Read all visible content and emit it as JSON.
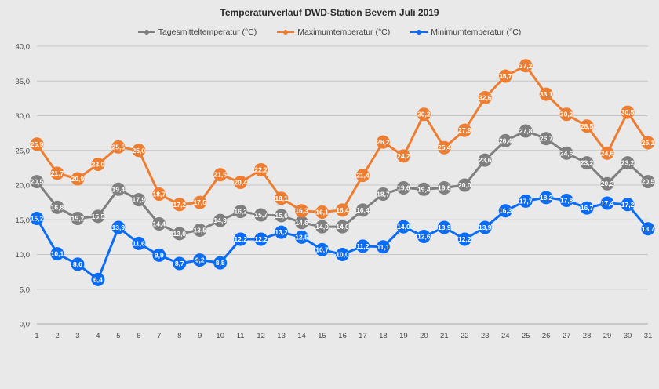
{
  "chart_data": {
    "type": "line",
    "title": "Temperaturverlauf DWD-Station Bevern Juli 2019",
    "xlabel": "",
    "ylabel": "",
    "ylim": [
      0,
      40
    ],
    "yticks": [
      "0,0",
      "5,0",
      "10,0",
      "15,0",
      "20,0",
      "25,0",
      "30,0",
      "35,0",
      "40,0"
    ],
    "legend_position": "top",
    "grid": true,
    "x": [
      1,
      2,
      3,
      4,
      5,
      6,
      7,
      8,
      9,
      10,
      11,
      12,
      13,
      14,
      15,
      16,
      17,
      18,
      19,
      20,
      21,
      22,
      23,
      24,
      25,
      26,
      27,
      28,
      29,
      30,
      31
    ],
    "series": [
      {
        "name": "Tagesmitteltemperatur (°C)",
        "color": "#7f7f7f",
        "values": [
          20.5,
          16.8,
          15.2,
          15.5,
          19.4,
          17.9,
          14.4,
          13.0,
          13.5,
          14.9,
          16.2,
          15.7,
          15.6,
          14.6,
          14.0,
          14.0,
          16.4,
          18.7,
          19.6,
          19.4,
          19.6,
          20.0,
          23.6,
          26.4,
          27.8,
          26.7,
          24.6,
          23.2,
          20.2,
          23.2,
          20.5
        ],
        "labels": [
          "20,5",
          "16,8",
          "15,2",
          "15,5",
          "19,4",
          "17,9",
          "14,4",
          "13,0",
          "13,5",
          "14,9",
          "16,2",
          "15,7",
          "15,6",
          "14,6",
          "14,0",
          "14,0",
          "16,4",
          "18,7",
          "19,6",
          "19,4",
          "19,6",
          "20,0",
          "23,6",
          "26,4",
          "27,8",
          "26,7",
          "24,6",
          "23,2",
          "20,2",
          "23,2",
          "20,5"
        ]
      },
      {
        "name": "Maximumtemperatur (°C)",
        "color": "#ed7d31",
        "values": [
          25.9,
          21.7,
          20.9,
          23.0,
          25.5,
          25.0,
          18.7,
          17.2,
          17.5,
          21.5,
          20.4,
          22.2,
          18.1,
          16.3,
          16.1,
          16.4,
          21.4,
          26.2,
          24.2,
          30.2,
          25.4,
          27.9,
          32.6,
          35.7,
          37.2,
          33.1,
          30.2,
          28.5,
          24.6,
          30.5,
          26.1
        ],
        "labels": [
          "25,9",
          "21,7",
          "20,9",
          "23,0",
          "25,5",
          "25,0",
          "18,7",
          "17,2",
          "17,5",
          "21,5",
          "20,4",
          "22,2",
          "18,1",
          "16,3",
          "16,1",
          "16,4",
          "21,4",
          "26,2",
          "24,2",
          "30,2",
          "25,4",
          "27,9",
          "32,6",
          "35,7",
          "37,2",
          "33,1",
          "30,2",
          "28,5",
          "24,6",
          "30,5",
          "26,1"
        ]
      },
      {
        "name": "Minimumtemperatur (°C)",
        "color": "#0a6cf5",
        "values": [
          15.2,
          10.1,
          8.6,
          6.4,
          13.9,
          11.6,
          9.9,
          8.7,
          9.2,
          8.8,
          12.2,
          12.2,
          13.2,
          12.5,
          10.7,
          10.0,
          11.2,
          11.1,
          14.0,
          12.6,
          13.9,
          12.2,
          13.9,
          16.3,
          17.7,
          18.2,
          17.8,
          16.7,
          17.4,
          17.2,
          13.7
        ],
        "labels": [
          "15,2",
          "10,1",
          "8,6",
          "6,4",
          "13,9",
          "11,6",
          "9,9",
          "8,7",
          "9,2",
          "8,8",
          "12,2",
          "12,2",
          "13,2",
          "12,5",
          "10,7",
          "10,0",
          "11,2",
          "11,1",
          "14,0",
          "12,6",
          "13,9",
          "12,2",
          "13,9",
          "16,3",
          "17,7",
          "18,2",
          "17,8",
          "16,7",
          "17,4",
          "17,2",
          "13,7"
        ]
      }
    ]
  }
}
